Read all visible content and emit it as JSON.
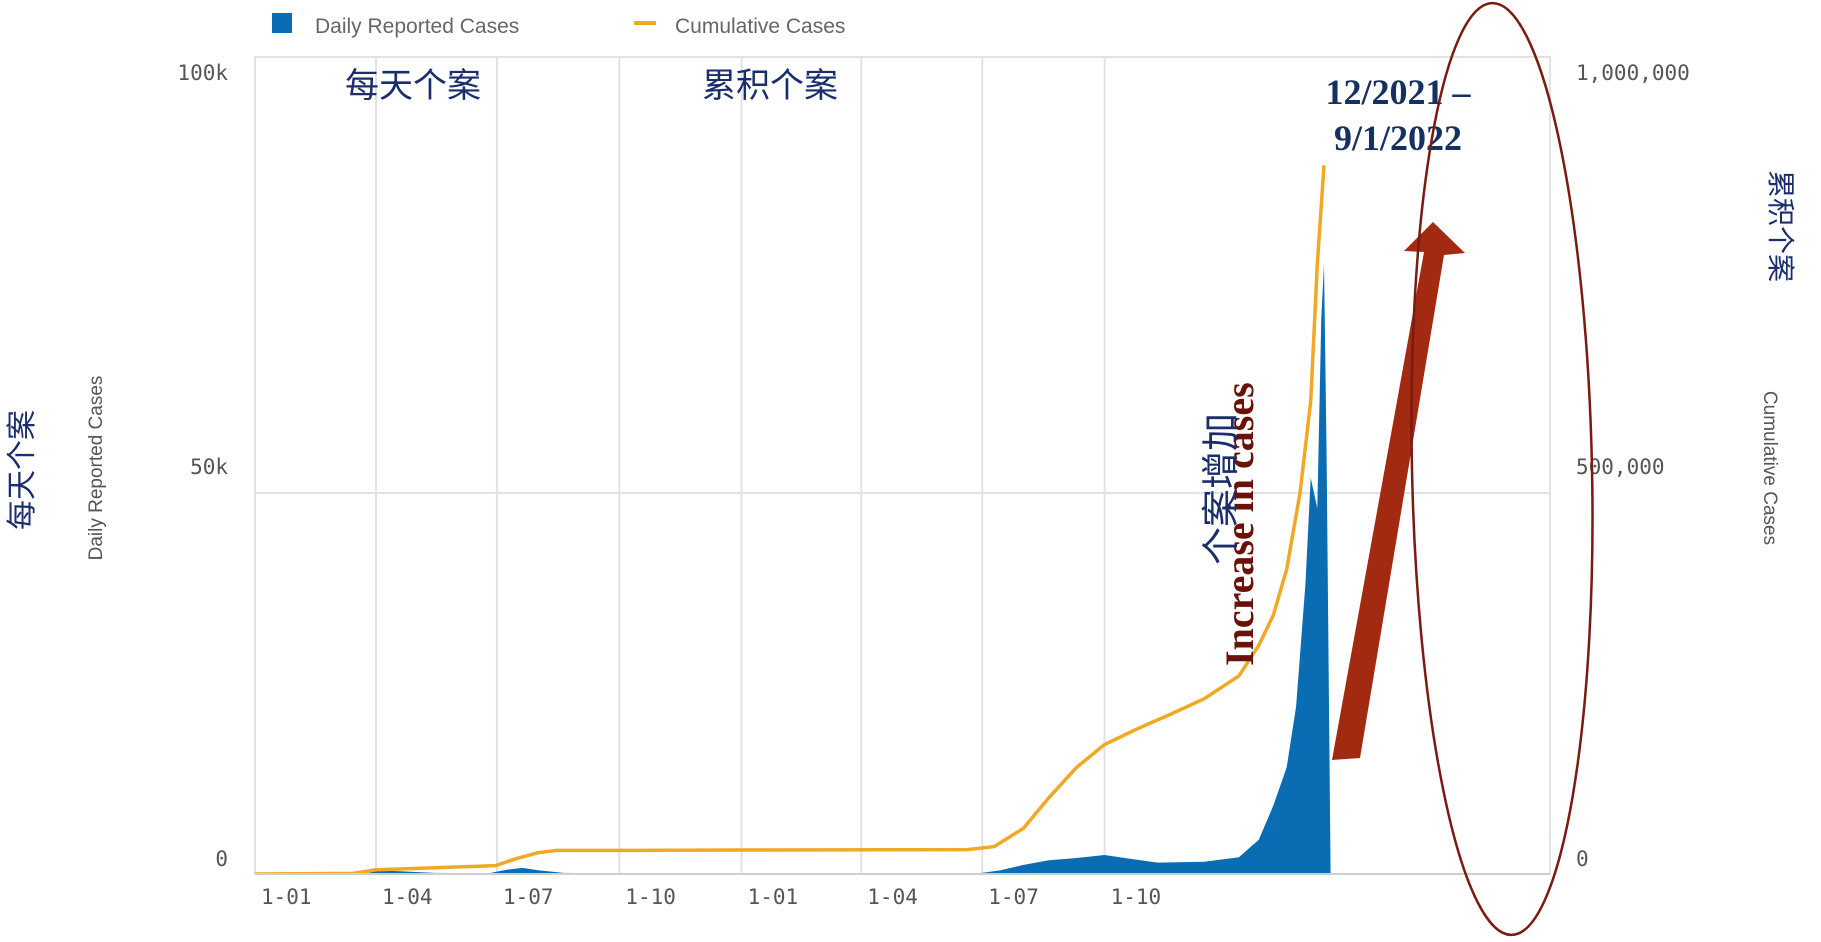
{
  "legend": {
    "daily_label": "Daily Reported Cases",
    "cumulative_label": "Cumulative Cases"
  },
  "axes": {
    "left_title": "Daily Reported Cases",
    "right_title": "Cumulative Cases",
    "left_ticks": [
      "100k",
      "50k",
      "0"
    ],
    "right_ticks": [
      "1,000,000",
      "500,000",
      "0"
    ],
    "x_ticks": [
      "1-01",
      "1-04",
      "1-07",
      "1-10",
      "1-01",
      "1-04",
      "1-07",
      "1-10"
    ]
  },
  "annotations": {
    "left_cn": "每天个案",
    "right_cn": "累积个案",
    "top_daily_cn": "每天个案",
    "top_cumulative_cn": "累积个案",
    "date_range_line1": "12/2021 –",
    "date_range_line2": "9/1/2022",
    "increase_en": "Increase in cases",
    "increase_cn": "个案增加"
  },
  "colors": {
    "daily": "#0a6db3",
    "cumulative": "#f0a825",
    "arrow": "#a22a10",
    "ellipse": "#7a1a12",
    "grid": "#e2e2e2"
  },
  "chart_data": {
    "type": "bar+line",
    "x_start": "2020-01-01",
    "x_end": "2022-09-01",
    "y_left_lim": [
      0,
      100000
    ],
    "y_right_lim": [
      0,
      1000000
    ],
    "series": [
      {
        "name": "Daily Reported Cases",
        "type": "area",
        "axis": "left",
        "points": [
          [
            "2020-01-01",
            0
          ],
          [
            "2020-03-25",
            0
          ],
          [
            "2020-04-01",
            600
          ],
          [
            "2020-04-15",
            400
          ],
          [
            "2020-05-15",
            150
          ],
          [
            "2020-06-25",
            100
          ],
          [
            "2020-07-08",
            550
          ],
          [
            "2020-07-20",
            800
          ],
          [
            "2020-08-01",
            500
          ],
          [
            "2020-08-20",
            150
          ],
          [
            "2020-10-01",
            60
          ],
          [
            "2021-01-01",
            40
          ],
          [
            "2021-06-01",
            30
          ],
          [
            "2021-06-28",
            80
          ],
          [
            "2021-07-15",
            500
          ],
          [
            "2021-08-01",
            1200
          ],
          [
            "2021-08-20",
            1800
          ],
          [
            "2021-09-10",
            2100
          ],
          [
            "2021-10-01",
            2500
          ],
          [
            "2021-10-20",
            2000
          ],
          [
            "2021-11-10",
            1500
          ],
          [
            "2021-12-15",
            1600
          ],
          [
            "2022-01-10",
            2200
          ],
          [
            "2022-01-25",
            4500
          ],
          [
            "2022-02-05",
            9000
          ],
          [
            "2022-02-15",
            14000
          ],
          [
            "2022-02-22",
            22000
          ],
          [
            "2022-03-01",
            38000
          ],
          [
            "2022-03-05",
            52000
          ],
          [
            "2022-03-10",
            48000
          ],
          [
            "2022-03-13",
            73000
          ],
          [
            "2022-03-15",
            80000
          ],
          [
            "2022-03-17",
            55000
          ],
          [
            "2022-03-20",
            0
          ]
        ]
      },
      {
        "name": "Cumulative Cases",
        "type": "line",
        "axis": "right",
        "points": [
          [
            "2020-01-01",
            0
          ],
          [
            "2020-03-15",
            800
          ],
          [
            "2020-04-01",
            5500
          ],
          [
            "2020-06-30",
            11000
          ],
          [
            "2020-07-15",
            20000
          ],
          [
            "2020-08-01",
            28000
          ],
          [
            "2020-08-15",
            31000
          ],
          [
            "2020-10-01",
            31000
          ],
          [
            "2021-01-01",
            31500
          ],
          [
            "2021-06-20",
            32000
          ],
          [
            "2021-07-10",
            36000
          ],
          [
            "2021-08-01",
            60000
          ],
          [
            "2021-08-20",
            100000
          ],
          [
            "2021-09-10",
            140000
          ],
          [
            "2021-10-01",
            170000
          ],
          [
            "2021-10-25",
            190000
          ],
          [
            "2021-11-20",
            210000
          ],
          [
            "2021-12-15",
            230000
          ],
          [
            "2022-01-10",
            260000
          ],
          [
            "2022-01-25",
            300000
          ],
          [
            "2022-02-05",
            340000
          ],
          [
            "2022-02-15",
            400000
          ],
          [
            "2022-02-25",
            500000
          ],
          [
            "2022-03-05",
            620000
          ],
          [
            "2022-03-10",
            800000
          ],
          [
            "2022-03-15",
            930000
          ]
        ]
      }
    ]
  }
}
